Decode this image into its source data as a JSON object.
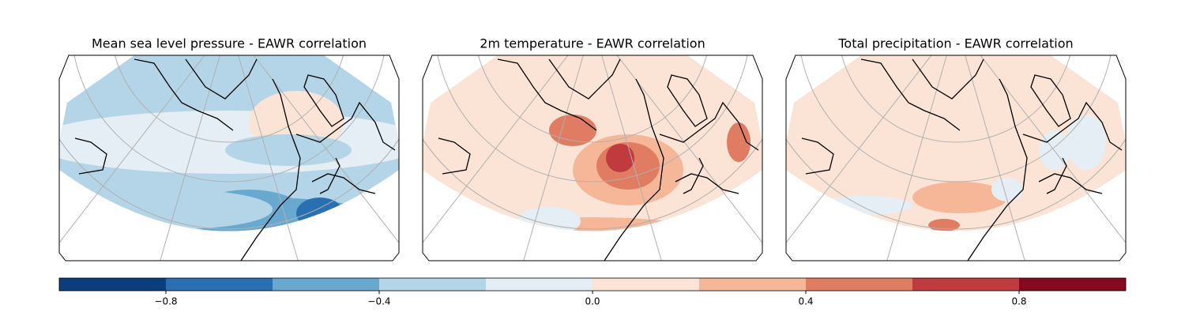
{
  "maps": [
    {
      "title": "Mean sea level pressure - EAWR correlation"
    },
    {
      "title": "2m temperature - EAWR correlation"
    },
    {
      "title": "Total precipitation - EAWR correlation"
    }
  ],
  "colorbar": {
    "boundaries": [
      -1,
      -0.8,
      -0.6,
      -0.4,
      -0.2,
      0,
      0.2,
      0.4,
      0.6,
      0.8,
      1
    ],
    "colors": [
      "#0a3f7c",
      "#2a6fb1",
      "#69a9d0",
      "#b3d5e7",
      "#e5eef4",
      "#fbe4d6",
      "#f6b799",
      "#e07c62",
      "#c03b3d",
      "#85091f"
    ],
    "ticks": [
      {
        "value": -0.8,
        "label": "−0.8"
      },
      {
        "value": -0.4,
        "label": "−0.4"
      },
      {
        "value": 0,
        "label": "0.0"
      },
      {
        "value": 0.4,
        "label": "0.4"
      },
      {
        "value": 0.8,
        "label": "0.8"
      }
    ]
  }
}
